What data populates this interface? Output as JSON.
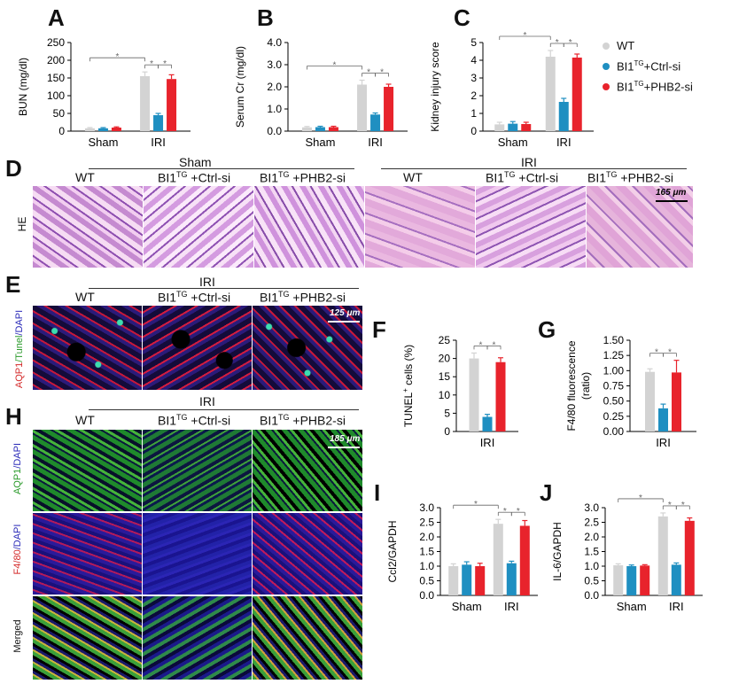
{
  "colors": {
    "wt": "#d3d3d3",
    "ctrl": "#1f8fc1",
    "phb2": "#e8232c"
  },
  "legend": {
    "wt": {
      "text": "WT"
    },
    "ctrl": {
      "pre": "BI1",
      "sup": "TG",
      "post": "+Ctrl-si"
    },
    "phb2": {
      "pre": "BI1",
      "sup": "TG",
      "post": "+PHB2-si"
    }
  },
  "panels": {
    "A": "A",
    "B": "B",
    "C": "C",
    "D": "D",
    "E": "E",
    "F": "F",
    "G": "G",
    "H": "H",
    "I": "I",
    "J": "J"
  },
  "chart_data": [
    {
      "id": "A",
      "type": "bar",
      "ylabel": "BUN (mg/dl)",
      "ylim": [
        0,
        250
      ],
      "yticks": [
        "0",
        "50",
        "100",
        "150",
        "200",
        "250"
      ],
      "categories": [
        "Sham",
        "IRI"
      ],
      "series": [
        {
          "name": "WT",
          "values": [
            8,
            155
          ],
          "errors": [
            2,
            12
          ]
        },
        {
          "name": "BI1TG+Ctrl-si",
          "values": [
            8,
            45
          ],
          "errors": [
            2,
            5
          ]
        },
        {
          "name": "BI1TG+PHB2-si",
          "values": [
            10,
            147
          ],
          "errors": [
            2,
            12
          ]
        }
      ],
      "significance": [
        "*",
        "*",
        "*"
      ]
    },
    {
      "id": "B",
      "type": "bar",
      "ylabel": "Serum Cr (mg/dl)",
      "ylim": [
        0,
        4
      ],
      "yticks": [
        "0.0",
        "1.0",
        "2.0",
        "3.0",
        "4.0"
      ],
      "categories": [
        "Sham",
        "IRI"
      ],
      "series": [
        {
          "name": "WT",
          "values": [
            0.17,
            2.1
          ],
          "errors": [
            0.04,
            0.2
          ]
        },
        {
          "name": "BI1TG+Ctrl-si",
          "values": [
            0.18,
            0.75
          ],
          "errors": [
            0.04,
            0.07
          ]
        },
        {
          "name": "BI1TG+PHB2-si",
          "values": [
            0.18,
            2.0
          ],
          "errors": [
            0.04,
            0.12
          ]
        }
      ],
      "significance": [
        "*",
        "*",
        "*"
      ]
    },
    {
      "id": "C",
      "type": "bar",
      "ylabel": "Kidney injury score",
      "ylim": [
        0,
        5
      ],
      "yticks": [
        "0",
        "1",
        "2",
        "3",
        "4",
        "5"
      ],
      "categories": [
        "Sham",
        "IRI"
      ],
      "series": [
        {
          "name": "WT",
          "values": [
            0.38,
            4.2
          ],
          "errors": [
            0.12,
            0.35
          ]
        },
        {
          "name": "BI1TG+Ctrl-si",
          "values": [
            0.42,
            1.65
          ],
          "errors": [
            0.12,
            0.2
          ]
        },
        {
          "name": "BI1TG+PHB2-si",
          "values": [
            0.4,
            4.15
          ],
          "errors": [
            0.1,
            0.2
          ]
        }
      ],
      "significance": [
        "*",
        "*",
        "*"
      ]
    },
    {
      "id": "F",
      "type": "bar",
      "ylabel": "TUNEL+ cells (%)",
      "ylim": [
        0,
        25
      ],
      "yticks": [
        "0",
        "5",
        "10",
        "15",
        "20",
        "25"
      ],
      "categories": [
        "IRI"
      ],
      "series": [
        {
          "name": "WT",
          "values": [
            20
          ],
          "errors": [
            1.5
          ]
        },
        {
          "name": "BI1TG+Ctrl-si",
          "values": [
            4
          ],
          "errors": [
            0.7
          ]
        },
        {
          "name": "BI1TG+PHB2-si",
          "values": [
            19
          ],
          "errors": [
            1.2
          ]
        }
      ],
      "significance": [
        "*",
        "*"
      ]
    },
    {
      "id": "G",
      "type": "bar",
      "ylabel": "F4/80 fluorescence (ratio)",
      "ylim": [
        0,
        1.5
      ],
      "yticks": [
        "0.00",
        "0.25",
        "0.50",
        "0.75",
        "1.00",
        "1.25",
        "1.50"
      ],
      "categories": [
        "IRI"
      ],
      "series": [
        {
          "name": "WT",
          "values": [
            0.98
          ],
          "errors": [
            0.05
          ]
        },
        {
          "name": "BI1TG+Ctrl-si",
          "values": [
            0.38
          ],
          "errors": [
            0.07
          ]
        },
        {
          "name": "BI1TG+PHB2-si",
          "values": [
            0.97
          ],
          "errors": [
            0.2
          ]
        }
      ],
      "significance": [
        "*",
        "*"
      ]
    },
    {
      "id": "I",
      "type": "bar",
      "ylabel": "Ccl2/GAPDH",
      "ylim": [
        0,
        3
      ],
      "yticks": [
        "0.0",
        "0.5",
        "1.0",
        "1.5",
        "2.0",
        "2.5",
        "3.0"
      ],
      "categories": [
        "Sham",
        "IRI"
      ],
      "series": [
        {
          "name": "WT",
          "values": [
            1.0,
            2.45
          ],
          "errors": [
            0.08,
            0.15
          ]
        },
        {
          "name": "BI1TG+Ctrl-si",
          "values": [
            1.05,
            1.1
          ],
          "errors": [
            0.1,
            0.07
          ]
        },
        {
          "name": "BI1TG+PHB2-si",
          "values": [
            1.0,
            2.38
          ],
          "errors": [
            0.1,
            0.18
          ]
        }
      ],
      "significance": [
        "*",
        "*",
        "*"
      ]
    },
    {
      "id": "J",
      "type": "bar",
      "ylabel": "IL-6/GAPDH",
      "ylim": [
        0,
        3
      ],
      "yticks": [
        "0.0",
        "0.5",
        "1.0",
        "1.5",
        "2.0",
        "2.5",
        "3.0"
      ],
      "categories": [
        "Sham",
        "IRI"
      ],
      "series": [
        {
          "name": "WT",
          "values": [
            1.03,
            2.7
          ],
          "errors": [
            0.05,
            0.12
          ]
        },
        {
          "name": "BI1TG+Ctrl-si",
          "values": [
            1.0,
            1.05
          ],
          "errors": [
            0.04,
            0.06
          ]
        },
        {
          "name": "BI1TG+PHB2-si",
          "values": [
            1.02,
            2.55
          ],
          "errors": [
            0.03,
            0.1
          ]
        }
      ],
      "significance": [
        "*",
        "*",
        "*"
      ]
    }
  ],
  "panel_d": {
    "sham": "Sham",
    "iri": "IRI",
    "wt": "WT",
    "ctrl_pre": "BI1",
    "ctrl_sup": "TG",
    "ctrl_post": " +Ctrl-si",
    "phb2_pre": "BI1",
    "phb2_sup": "TG",
    "phb2_post": " +PHB2-si",
    "row_label": "HE",
    "scale": "165 μm"
  },
  "panel_e": {
    "group": "IRI",
    "wt": "WT",
    "ctrl_pre": "BI1",
    "ctrl_sup": "TG",
    "ctrl_post": " +Ctrl-si",
    "phb2_pre": "BI1",
    "phb2_sup": "TG",
    "phb2_post": " +PHB2-si",
    "stain_a": "AQP1",
    "stain_b": "/Tunel",
    "stain_c": "/DAPI",
    "scale": "125 μm"
  },
  "panel_h": {
    "group": "IRI",
    "wt": "WT",
    "ctrl_pre": "BI1",
    "ctrl_sup": "TG",
    "ctrl_post": " +Ctrl-si",
    "phb2_pre": "BI1",
    "phb2_sup": "TG",
    "phb2_post": " +PHB2-si",
    "row1_a": "AQP1",
    "row1_b": "/DAPI",
    "row2_a": "F4/80",
    "row2_b": "/DAPI",
    "row3": "Merged",
    "scale": "185 μm"
  }
}
